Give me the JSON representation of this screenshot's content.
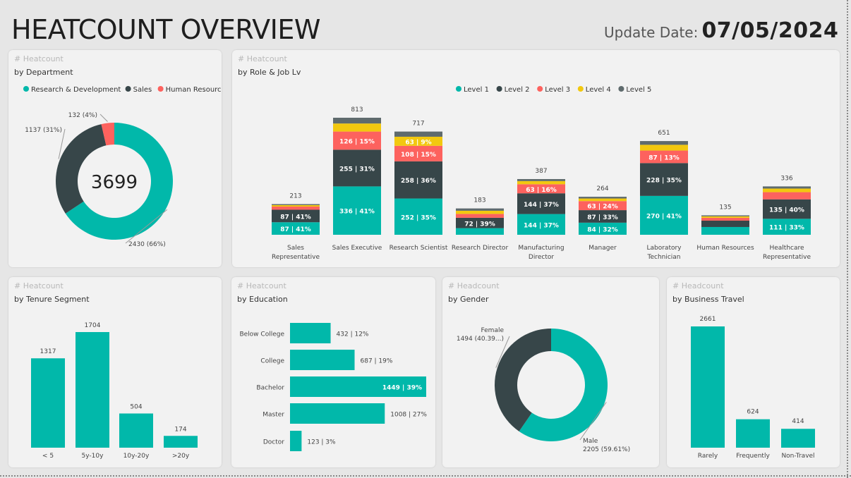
{
  "header": {
    "title": "HEATCOUNT OVERVIEW",
    "update_label": "Update Date:",
    "update_value": "07/05/2024"
  },
  "colors": {
    "teal": "#01b8aa",
    "dark": "#374649",
    "red": "#fd625e",
    "yellow": "#f2c80f",
    "gray": "#5f6b6d",
    "bg": "#e6e6e6",
    "card": "#f2f2f2"
  },
  "cards": {
    "department": {
      "kicker": "# Heatcount",
      "subtitle": "by Department"
    },
    "role": {
      "kicker": "# Heatcount",
      "subtitle": "by Role & Job Lv"
    },
    "tenure": {
      "kicker": "# Heatcount",
      "subtitle": "by Tenure Segment"
    },
    "education": {
      "kicker": "# Heatcount",
      "subtitle": "by Education"
    },
    "gender": {
      "kicker": "# Headcount",
      "subtitle": "by Gender"
    },
    "travel": {
      "kicker": "# Headcount",
      "subtitle": "by Business Travel"
    }
  },
  "chart_data": [
    {
      "id": "department",
      "type": "pie",
      "donut": true,
      "center_label": "3699",
      "legend": [
        "Research & Development",
        "Sales",
        "Human Resources"
      ],
      "slices": [
        {
          "name": "Research & Development",
          "value": 2430,
          "label": "2430 (66%)",
          "color": "#01b8aa"
        },
        {
          "name": "Sales",
          "value": 1137,
          "label": "1137 (31%)",
          "color": "#374649"
        },
        {
          "name": "Human Resources",
          "value": 132,
          "label": "132 (4%)",
          "color": "#fd625e"
        }
      ]
    },
    {
      "id": "role",
      "type": "bar",
      "stacked": true,
      "legend": [
        "Level 1",
        "Level 2",
        "Level 3",
        "Level 4",
        "Level 5"
      ],
      "colors": [
        "#01b8aa",
        "#374649",
        "#fd625e",
        "#f2c80f",
        "#5f6b6d"
      ],
      "categories": [
        {
          "name": "Sales Representative",
          "lines": [
            "Sales",
            "Representative"
          ],
          "total": 213,
          "segments": [
            87,
            87,
            22,
            10,
            7
          ],
          "labels": [
            "87 | 41%",
            "87 | 41%",
            "",
            "",
            ""
          ]
        },
        {
          "name": "Sales Executive",
          "lines": [
            "Sales Executive"
          ],
          "total": 813,
          "segments": [
            336,
            255,
            126,
            56,
            40
          ],
          "labels": [
            "336 | 41%",
            "255 | 31%",
            "126 | 15%",
            "",
            ""
          ]
        },
        {
          "name": "Research Scientist",
          "lines": [
            "Research Scientist"
          ],
          "total": 717,
          "segments": [
            252,
            258,
            108,
            63,
            36
          ],
          "labels": [
            "252 | 35%",
            "258 | 36%",
            "108 | 15%",
            "63 | 9%",
            ""
          ]
        },
        {
          "name": "Research Director",
          "lines": [
            "Research Director"
          ],
          "total": 183,
          "segments": [
            46,
            72,
            27,
            22,
            16
          ],
          "labels": [
            "",
            "72 | 39%",
            "",
            "",
            ""
          ]
        },
        {
          "name": "Manufacturing Director",
          "lines": [
            "Manufacturing",
            "Director"
          ],
          "total": 387,
          "segments": [
            144,
            144,
            63,
            22,
            14
          ],
          "labels": [
            "144 | 37%",
            "144 | 37%",
            "63 | 16%",
            "",
            ""
          ]
        },
        {
          "name": "Manager",
          "lines": [
            "Manager"
          ],
          "total": 264,
          "segments": [
            84,
            87,
            63,
            18,
            12
          ],
          "labels": [
            "84 | 32%",
            "87 | 33%",
            "63 | 24%",
            "",
            ""
          ]
        },
        {
          "name": "Laboratory Technician",
          "lines": [
            "Laboratory",
            "Technician"
          ],
          "total": 651,
          "segments": [
            270,
            228,
            87,
            40,
            26
          ],
          "labels": [
            "270 | 41%",
            "228 | 35%",
            "87 | 13%",
            "",
            ""
          ]
        },
        {
          "name": "Human Resources",
          "lines": [
            "Human Resources"
          ],
          "total": 135,
          "segments": [
            54,
            44,
            20,
            10,
            7
          ],
          "labels": [
            "",
            "",
            "",
            "",
            ""
          ]
        },
        {
          "name": "Healthcare Representative",
          "lines": [
            "Healthcare",
            "Representative"
          ],
          "total": 336,
          "segments": [
            111,
            135,
            50,
            25,
            15
          ],
          "labels": [
            "111 | 33%",
            "135 | 40%",
            "",
            "",
            ""
          ]
        }
      ]
    },
    {
      "id": "tenure",
      "type": "bar",
      "categories": [
        "< 5",
        "5y-10y",
        "10y-20y",
        ">20y"
      ],
      "values": [
        1317,
        1704,
        504,
        174
      ]
    },
    {
      "id": "education",
      "type": "bar",
      "orientation": "horizontal",
      "categories": [
        "Below College",
        "College",
        "Bachelor",
        "Master",
        "Doctor"
      ],
      "values": [
        432,
        687,
        1449,
        1008,
        123
      ],
      "labels": [
        "432 | 12%",
        "687 | 19%",
        "1449 | 39%",
        "1008 | 27%",
        "123 | 3%"
      ]
    },
    {
      "id": "gender",
      "type": "pie",
      "donut": true,
      "slices": [
        {
          "name": "Male",
          "value": 2205,
          "label": "2205 (59.61%)",
          "color": "#01b8aa"
        },
        {
          "name": "Female",
          "value": 1494,
          "label": "1494 (40.39...)",
          "color": "#374649"
        }
      ]
    },
    {
      "id": "travel",
      "type": "bar",
      "categories": [
        "Rarely",
        "Frequently",
        "Non-Travel"
      ],
      "values": [
        2661,
        624,
        414
      ]
    }
  ]
}
